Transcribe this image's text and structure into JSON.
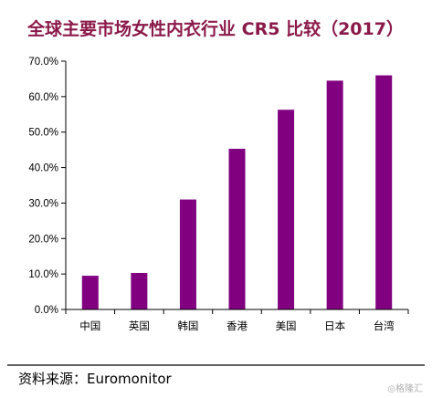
{
  "colors": {
    "title": "#8b1a4a",
    "bar": "#800080",
    "axis": "#000000",
    "separator": "#000000",
    "watermark": "#b0b0b0"
  },
  "chart_data": {
    "type": "bar",
    "title": "全球主要市场女性内衣行业 CR5 比较（2017）",
    "categories": [
      "中国",
      "英国",
      "韩国",
      "香港",
      "美国",
      "日本",
      "台湾"
    ],
    "values": [
      9.5,
      10.3,
      31.0,
      45.3,
      56.3,
      64.5,
      66.0
    ],
    "ylim": [
      0,
      70
    ],
    "yticks": [
      0,
      10,
      20,
      30,
      40,
      50,
      60,
      70
    ],
    "ytick_labels": [
      "0.0%",
      "10.0%",
      "20.0%",
      "30.0%",
      "40.0%",
      "50.0%",
      "60.0%",
      "70.0%"
    ],
    "xlabel": "",
    "ylabel": "",
    "grid": false,
    "legend": "none"
  },
  "source": {
    "label": "资料来源：Euromonitor"
  },
  "watermark": {
    "text": "◎格隆汇"
  }
}
